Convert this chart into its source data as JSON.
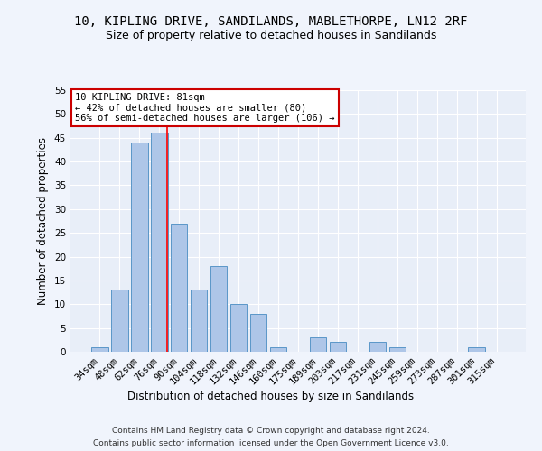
{
  "title1": "10, KIPLING DRIVE, SANDILANDS, MABLETHORPE, LN12 2RF",
  "title2": "Size of property relative to detached houses in Sandilands",
  "xlabel": "Distribution of detached houses by size in Sandilands",
  "ylabel": "Number of detached properties",
  "categories": [
    "34sqm",
    "48sqm",
    "62sqm",
    "76sqm",
    "90sqm",
    "104sqm",
    "118sqm",
    "132sqm",
    "146sqm",
    "160sqm",
    "175sqm",
    "189sqm",
    "203sqm",
    "217sqm",
    "231sqm",
    "245sqm",
    "259sqm",
    "273sqm",
    "287sqm",
    "301sqm",
    "315sqm"
  ],
  "values": [
    1,
    13,
    44,
    46,
    27,
    13,
    18,
    10,
    8,
    1,
    0,
    3,
    2,
    0,
    2,
    1,
    0,
    0,
    0,
    1,
    0
  ],
  "bar_color": "#aec6e8",
  "bar_edge_color": "#5a96c8",
  "annotation_text_line1": "10 KIPLING DRIVE: 81sqm",
  "annotation_text_line2": "← 42% of detached houses are smaller (80)",
  "annotation_text_line3": "56% of semi-detached houses are larger (106) →",
  "annotation_box_color": "#ffffff",
  "annotation_box_edge": "#cc0000",
  "red_line_x": 3.42,
  "footer1": "Contains HM Land Registry data © Crown copyright and database right 2024.",
  "footer2": "Contains public sector information licensed under the Open Government Licence v3.0.",
  "ylim": [
    0,
    55
  ],
  "yticks": [
    0,
    5,
    10,
    15,
    20,
    25,
    30,
    35,
    40,
    45,
    50,
    55
  ],
  "bg_color": "#e8eef8",
  "grid_color": "#ffffff",
  "fig_bg_color": "#f0f4fc",
  "title_fontsize": 10,
  "subtitle_fontsize": 9,
  "axis_label_fontsize": 8.5,
  "tick_fontsize": 7.5
}
